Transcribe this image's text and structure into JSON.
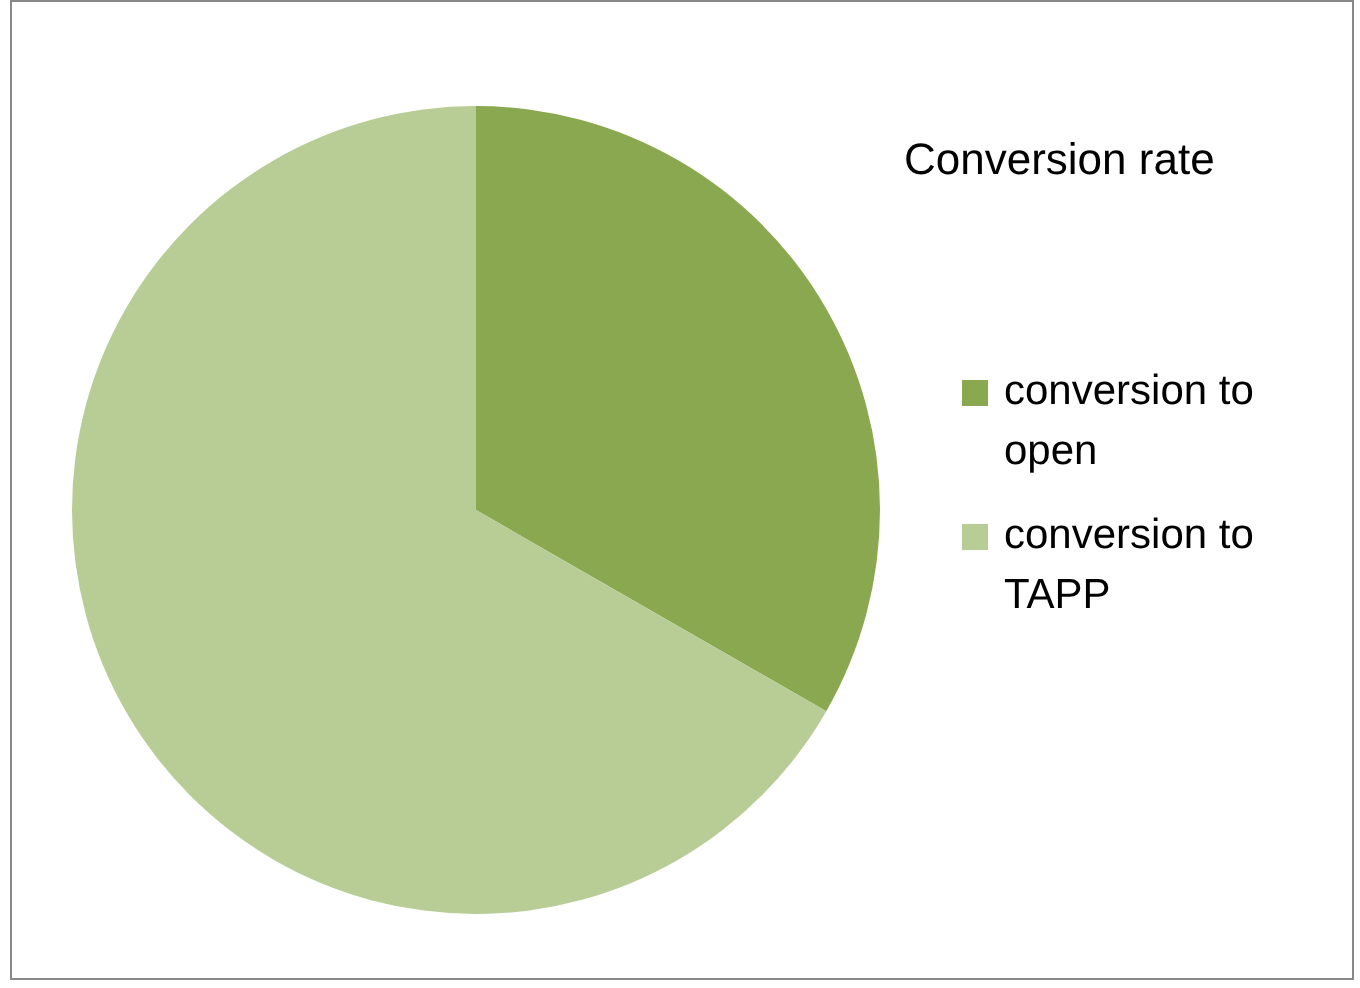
{
  "chart_data": {
    "type": "pie",
    "title": "Conversion rate",
    "categories": [
      "conversion to open",
      "conversion to TAPP"
    ],
    "values": [
      33.3,
      66.7
    ],
    "colors": [
      "#8aa84f",
      "#b8cd95"
    ],
    "legend": "right"
  }
}
